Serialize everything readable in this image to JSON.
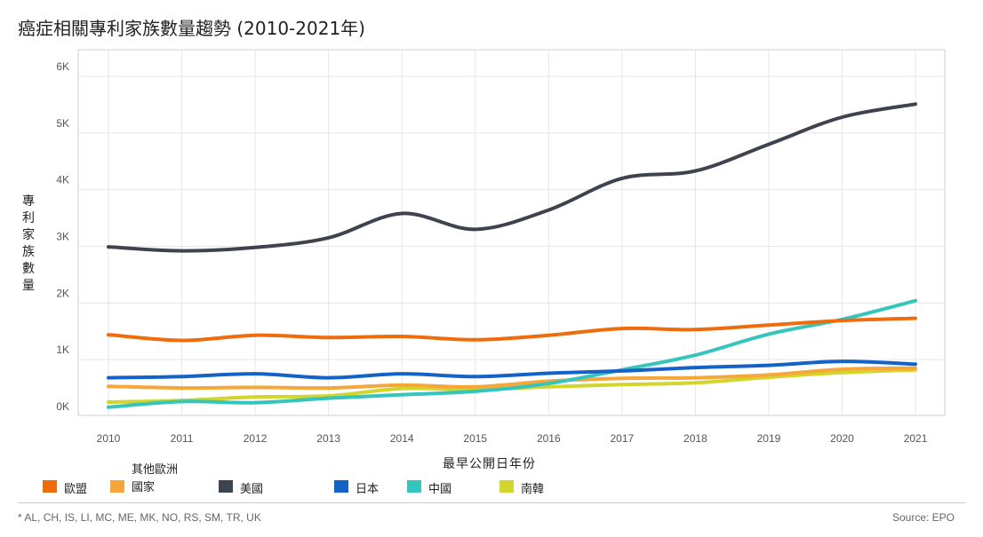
{
  "title": "癌症相關專利家族數量趨勢 (2010-2021年)",
  "footnote": "* AL, CH, IS, LI, MC, ME, MK, NO, RS, SM, TR, UK",
  "source": "Source: EPO",
  "chart_data": {
    "type": "line",
    "xlabel": "最早公開日年份",
    "ylabel": "專利家族數量",
    "xlim": [
      2010,
      2021
    ],
    "ylim": [
      0,
      6000
    ],
    "x_ticks": [
      "2010",
      "2011",
      "2012",
      "2013",
      "2014",
      "2015",
      "2016",
      "2017",
      "2018",
      "2019",
      "2020",
      "2021"
    ],
    "y_ticks": [
      {
        "value": 0,
        "label": "0K"
      },
      {
        "value": 1000,
        "label": "1K"
      },
      {
        "value": 2000,
        "label": "2K"
      },
      {
        "value": 3000,
        "label": "3K"
      },
      {
        "value": 4000,
        "label": "4K"
      },
      {
        "value": 5000,
        "label": "5K"
      },
      {
        "value": 6000,
        "label": "6K"
      }
    ],
    "grid": true,
    "legend_position": "bottom-left",
    "x": [
      2010,
      2011,
      2012,
      2013,
      2014,
      2015,
      2016,
      2017,
      2018,
      2019,
      2020,
      2021
    ],
    "series": [
      {
        "name": "歐盟",
        "color": "#ef6c0c",
        "values": [
          1440,
          1340,
          1430,
          1390,
          1410,
          1350,
          1430,
          1550,
          1530,
          1610,
          1690,
          1730
        ]
      },
      {
        "name": "其他歐洲\n國家",
        "color": "#f7a63a",
        "values": [
          530,
          500,
          510,
          500,
          550,
          520,
          620,
          670,
          680,
          730,
          830,
          850
        ]
      },
      {
        "name": "美國",
        "color": "#3d4450",
        "values": [
          2990,
          2920,
          2980,
          3150,
          3580,
          3300,
          3640,
          4200,
          4330,
          4800,
          5280,
          5510
        ]
      },
      {
        "name": "日本",
        "color": "#1462c8",
        "values": [
          680,
          700,
          750,
          680,
          750,
          700,
          760,
          800,
          860,
          900,
          970,
          920
        ]
      },
      {
        "name": "中國",
        "color": "#35c5bd",
        "values": [
          160,
          260,
          240,
          320,
          380,
          440,
          580,
          820,
          1080,
          1450,
          1710,
          2040
        ]
      },
      {
        "name": "南韓",
        "color": "#d2d62a",
        "values": [
          250,
          280,
          340,
          360,
          490,
          470,
          520,
          560,
          590,
          690,
          770,
          820
        ]
      }
    ]
  }
}
